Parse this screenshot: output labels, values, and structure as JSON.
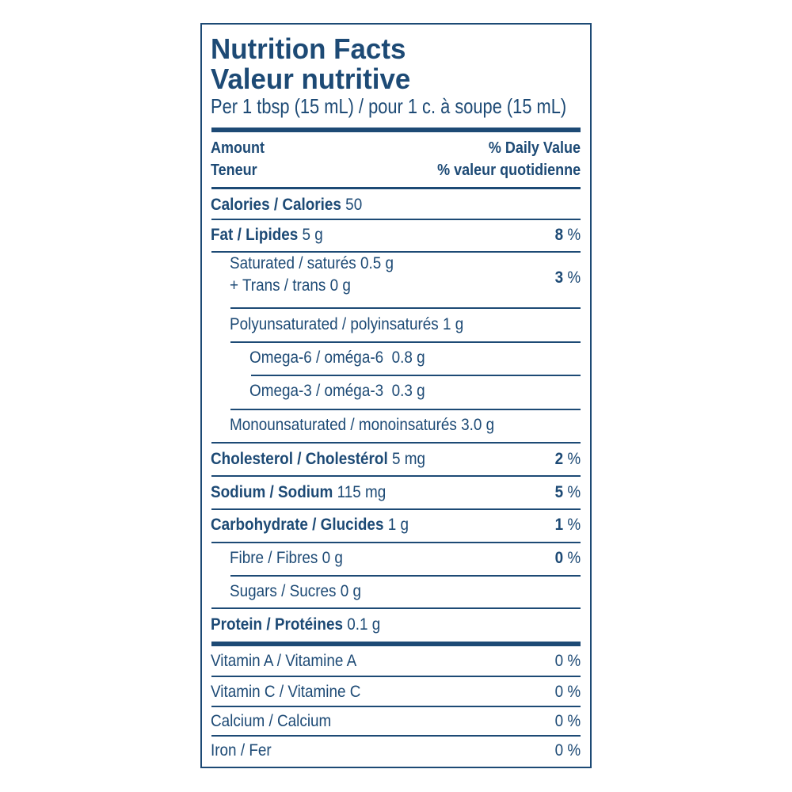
{
  "title": {
    "en": "Nutrition Facts",
    "fr": "Valeur nutritive"
  },
  "serving": "Per 1 tbsp (15 mL) / pour 1 c. à soupe (15 mL)",
  "header": {
    "amount": "Amount",
    "teneur": "Teneur",
    "dv": "% Daily Value",
    "vq": "% valeur quotidienne"
  },
  "rows": {
    "calories": {
      "label": "Calories / Calories",
      "amount": "50"
    },
    "fat": {
      "label": "Fat / Lipides",
      "amount": "5 g",
      "dv": "8",
      "unit": "%"
    },
    "saturated": {
      "label": "Saturated / saturés 0.5 g",
      "label2": "+ Trans / trans 0 g",
      "dv": "3",
      "unit": "%"
    },
    "poly": {
      "label": "Polyunsaturated / polyinsaturés 1 g"
    },
    "omega6": {
      "label": "Omega-6 / oméga-6  0.8 g"
    },
    "omega3": {
      "label": "Omega-3 / oméga-3  0.3 g"
    },
    "mono": {
      "label": "Monounsaturated / monoinsaturés 3.0 g"
    },
    "cholesterol": {
      "label": "Cholesterol / Cholestérol",
      "amount": "5 mg",
      "dv": "2",
      "unit": "%"
    },
    "sodium": {
      "label": "Sodium / Sodium",
      "amount": "115 mg",
      "dv": "5",
      "unit": "%"
    },
    "carbohydrate": {
      "label": "Carbohydrate / Glucides",
      "amount": "1 g",
      "dv": "1",
      "unit": "%"
    },
    "fibre": {
      "label": "Fibre / Fibres 0 g",
      "dv": "0",
      "unit": "%"
    },
    "sugars": {
      "label": "Sugars / Sucres 0 g"
    },
    "protein": {
      "label": "Protein / Protéines",
      "amount": "0.1 g"
    }
  },
  "vitamins": [
    {
      "label": "Vitamin A / Vitamine A",
      "dv": "0 %"
    },
    {
      "label": "Vitamin C / Vitamine C",
      "dv": "0 %"
    },
    {
      "label": "Calcium / Calcium",
      "dv": "0 %"
    },
    {
      "label": "Iron / Fer",
      "dv": "0 %"
    }
  ],
  "colors": {
    "ink": "#1d4a75",
    "background": "#ffffff"
  }
}
